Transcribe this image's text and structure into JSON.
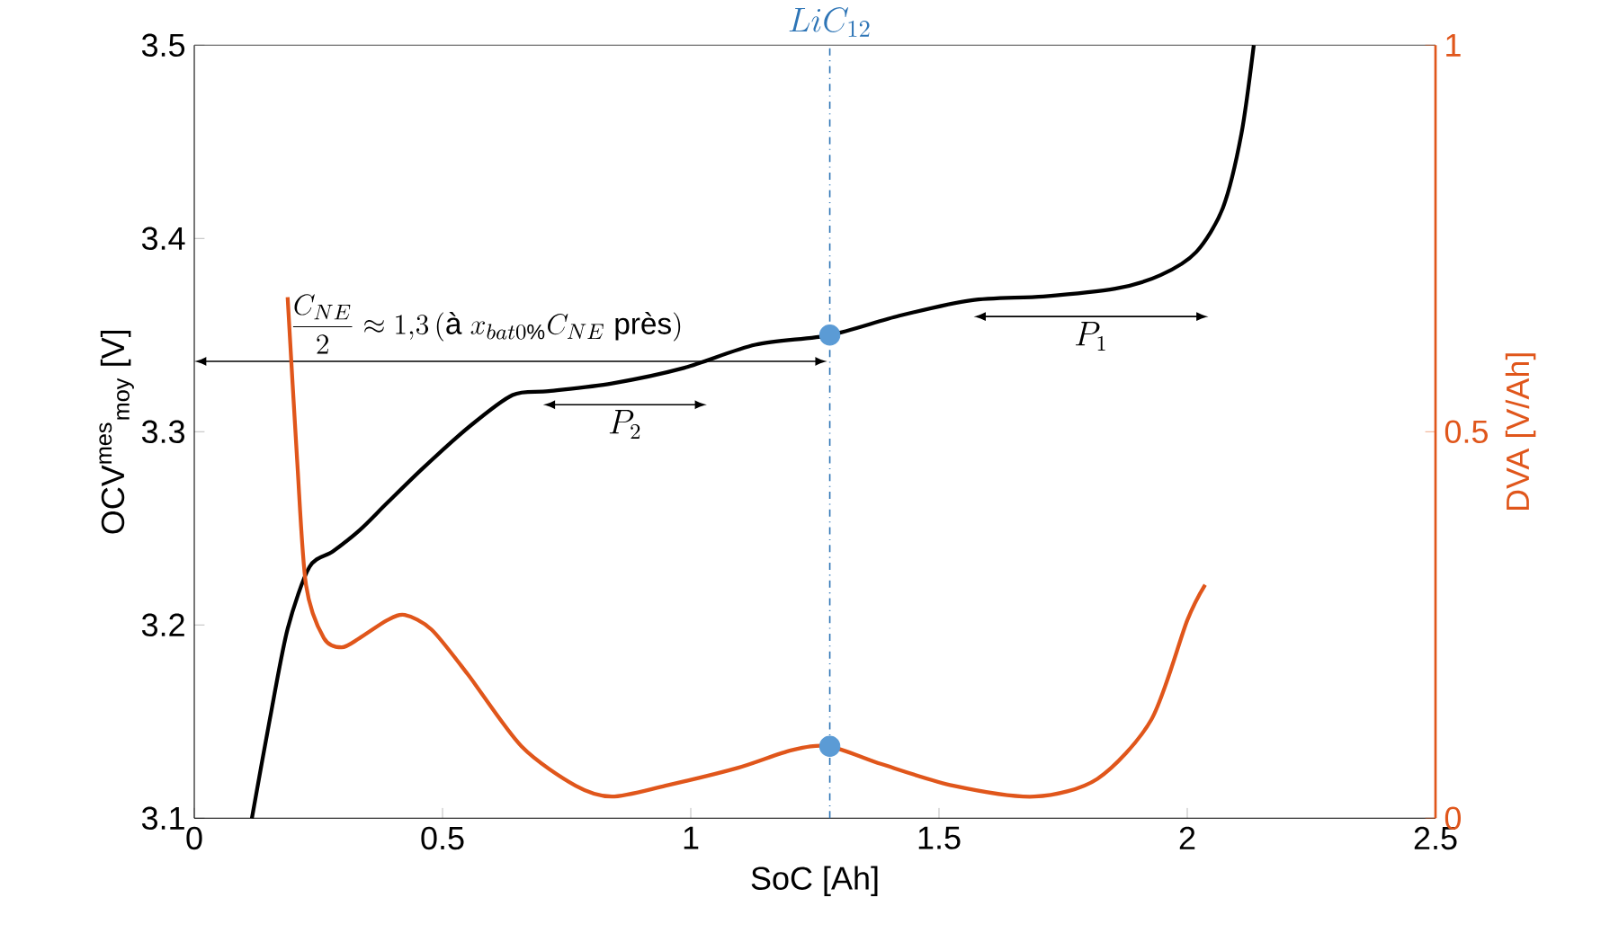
{
  "chart_data": {
    "type": "line",
    "xlabel": "SoC [Ah]",
    "ylabel": "OCV$^{mes}$$_{moy}$ [V]",
    "y2label": "DVA [V/Ah]",
    "xlim": [
      0,
      2.5
    ],
    "xticks": [
      0,
      0.5,
      1,
      1.5,
      2,
      2.5
    ],
    "ylim": [
      3.1,
      3.5
    ],
    "yticks": [
      3.1,
      3.2,
      3.3,
      3.4,
      3.5
    ],
    "y2lim": [
      0,
      1
    ],
    "y2ticks": [
      0,
      0.5,
      1
    ],
    "grid": false,
    "legend": false,
    "marker": "none",
    "line_style": "solid",
    "series": [
      {
        "color": "#000000",
        "x": [
          0.116,
          0.152,
          0.188,
          0.232,
          0.279,
          0.333,
          0.388,
          0.46,
          0.551,
          0.641,
          0.714,
          0.841,
          0.986,
          1.13,
          1.28,
          1.42,
          1.565,
          1.71,
          1.855,
          1.946,
          2.018,
          2.072,
          2.109,
          2.134
        ],
        "values": [
          3.1,
          3.151,
          3.198,
          3.23,
          3.238,
          3.249,
          3.263,
          3.281,
          3.302,
          3.319,
          3.321,
          3.325,
          3.333,
          3.345,
          3.35,
          3.36,
          3.368,
          3.37,
          3.374,
          3.381,
          3.393,
          3.416,
          3.454,
          3.5
        ]
      },
      {
        "axis": "y2",
        "color": "#e0561b",
        "x": [
          0.188,
          0.207,
          0.225,
          0.261,
          0.297,
          0.333,
          0.388,
          0.424,
          0.478,
          0.551,
          0.659,
          0.768,
          0.841,
          0.949,
          1.094,
          1.203,
          1.279,
          1.384,
          1.529,
          1.692,
          1.819,
          1.928,
          2.0,
          2.036
        ],
        "values": [
          0.674,
          0.465,
          0.302,
          0.233,
          0.221,
          0.233,
          0.256,
          0.263,
          0.244,
          0.186,
          0.093,
          0.042,
          0.028,
          0.042,
          0.065,
          0.088,
          0.093,
          0.07,
          0.042,
          0.028,
          0.051,
          0.128,
          0.256,
          0.302
        ]
      },
      {
        "type": "scatter",
        "marker": "circle",
        "color": "#5b9bd5",
        "x": [
          1.28
        ],
        "values": [
          3.35
        ]
      },
      {
        "type": "scatter",
        "marker": "circle",
        "axis": "y2",
        "color": "#5b9bd5",
        "x": [
          1.28
        ],
        "values": [
          0.093
        ]
      }
    ],
    "ref_lines": [
      {
        "axis": "x",
        "value": 1.28,
        "label": "LiC_{12}",
        "color": "#2e75b6",
        "line_style": "dashdotted"
      }
    ],
    "annotations": [
      "\\frac{C_{NE}}{2}\\approx 1{,}3\\,(\\mbox{à }x_{bat0\\%}C_{NE}\\mbox{ près})",
      "P_2",
      "P_1"
    ]
  }
}
